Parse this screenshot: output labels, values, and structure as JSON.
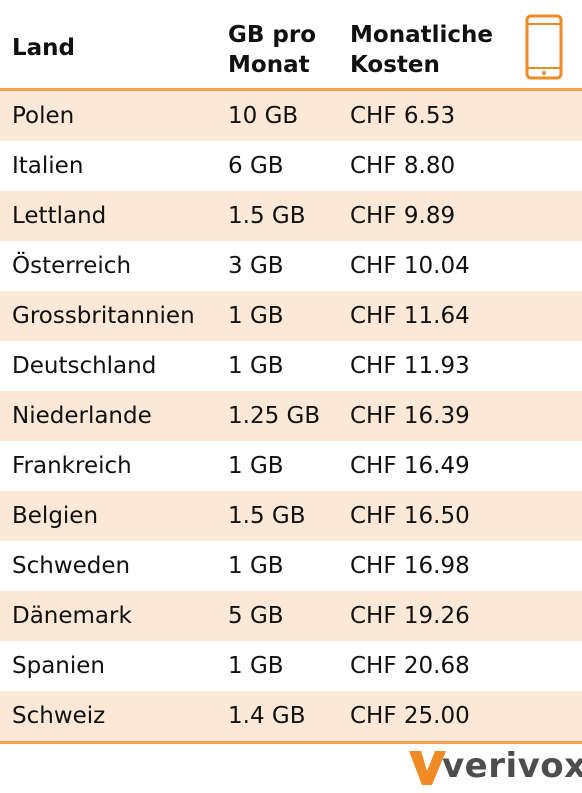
{
  "header": {
    "land": "Land",
    "gb": "GB pro\nMonat",
    "cost": "Monatliche\nKosten",
    "icon": "smartphone-icon"
  },
  "rows": [
    {
      "land": "Polen",
      "gb": "10 GB",
      "cost": "CHF 6.53"
    },
    {
      "land": "Italien",
      "gb": "6 GB",
      "cost": "CHF 8.80"
    },
    {
      "land": "Lettland",
      "gb": "1.5 GB",
      "cost": "CHF 9.89"
    },
    {
      "land": "Österreich",
      "gb": "3 GB",
      "cost": "CHF 10.04"
    },
    {
      "land": "Grossbritannien",
      "gb": "1 GB",
      "cost": "CHF 11.64"
    },
    {
      "land": "Deutschland",
      "gb": "1 GB",
      "cost": "CHF 11.93"
    },
    {
      "land": "Niederlande",
      "gb": "1.25 GB",
      "cost": "CHF 16.39"
    },
    {
      "land": "Frankreich",
      "gb": "1 GB",
      "cost": "CHF 16.49"
    },
    {
      "land": "Belgien",
      "gb": "1.5 GB",
      "cost": "CHF 16.50"
    },
    {
      "land": "Schweden",
      "gb": "1 GB",
      "cost": "CHF 16.98"
    },
    {
      "land": "Dänemark",
      "gb": "5 GB",
      "cost": "CHF 19.26"
    },
    {
      "land": "Spanien",
      "gb": "1 GB",
      "cost": "CHF 20.68"
    },
    {
      "land": "Schweiz",
      "gb": "1.4 GB",
      "cost": "CHF 25.00"
    }
  ],
  "brand": {
    "logo_text": "verivox",
    "accent": "#f08a24",
    "row_highlight": "#fbe8d6"
  }
}
